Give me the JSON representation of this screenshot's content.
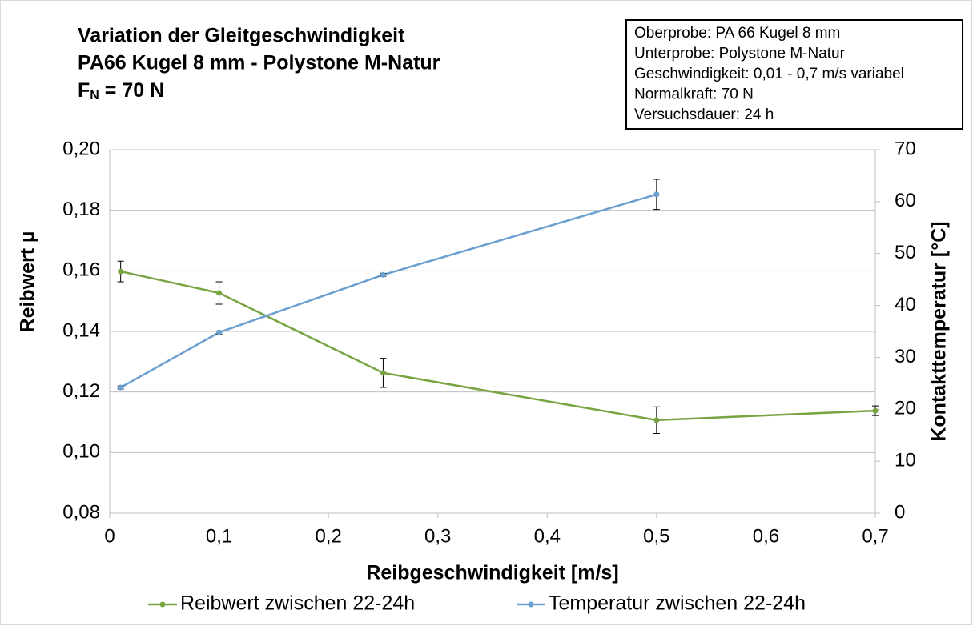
{
  "chart_data": {
    "type": "line",
    "title": [
      "Variation der Gleitgeschwindigkeit",
      "PA66 Kugel 8 mm - Polystone M-Natur"
    ],
    "force_label": {
      "symbol": "F",
      "subscript": "N",
      "text": " = 70 N"
    },
    "annotation": [
      "Oberprobe: PA 66 Kugel 8 mm",
      "Unterprobe: Polystone M-Natur",
      "Geschwindigkeit: 0,01 - 0,7 m/s variabel",
      "Normalkraft: 70 N",
      "Versuchsdauer: 24 h"
    ],
    "x_label": "Reibgeschwindigkeit [m/s]",
    "y_label": "Reibwert µ",
    "y2_label": "Kontakttemperatur [°C]",
    "xlim": [
      0,
      0.7
    ],
    "xticks": [
      0,
      {
        "value": 0.1,
        "label": "0,1"
      },
      {
        "value": 0.2,
        "label": "0,2"
      },
      {
        "value": 0.3,
        "label": "0,3"
      },
      {
        "value": 0.4,
        "label": "0,4"
      },
      {
        "value": 0.5,
        "label": "0,5"
      },
      {
        "value": 0.6,
        "label": "0,6"
      },
      {
        "value": 0.7,
        "label": "0,7"
      }
    ],
    "ylim": [
      0.08,
      0.2
    ],
    "yticks": [
      {
        "value": 0.08,
        "label": "0,08"
      },
      {
        "value": 0.1,
        "label": "0,10"
      },
      {
        "value": 0.12,
        "label": "0,12"
      },
      {
        "value": 0.14,
        "label": "0,14"
      },
      {
        "value": 0.16,
        "label": "0,16"
      },
      {
        "value": 0.18,
        "label": "0,18"
      },
      {
        "value": 0.2,
        "label": "0,20"
      }
    ],
    "y2lim": [
      0,
      70
    ],
    "y2ticks": [
      0,
      10,
      20,
      30,
      40,
      50,
      60,
      70
    ],
    "grid": true,
    "legend": "bottom",
    "series": [
      {
        "name": "Reibwert zwischen 22-24h",
        "color": "#77a441",
        "x": [
          0.01,
          0.1,
          0.25,
          0.5,
          0.7
        ],
        "values": [
          0.1598,
          0.1527,
          0.1263,
          0.1107,
          0.1138
        ],
        "errors": [
          0.0034,
          0.0037,
          0.0048,
          0.0044,
          0.0016
        ]
      },
      {
        "name": "Temperatur zwischen 22-24h",
        "color": "#6a9fd0",
        "axis": "y2",
        "x": [
          0.01,
          0.1,
          0.25,
          0.5
        ],
        "values": [
          24.2,
          34.8,
          45.9,
          61.4
        ],
        "errors": [
          0.3,
          0.3,
          0.3,
          2.9
        ]
      }
    ]
  }
}
